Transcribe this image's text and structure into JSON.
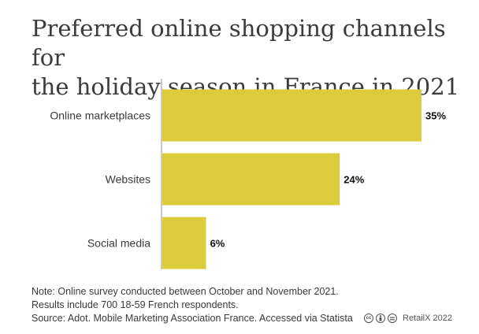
{
  "title_lines": [
    "Preferred online shopping channels for",
    "the holiday season in France in 2021"
  ],
  "chart_data": {
    "type": "bar",
    "orientation": "horizontal",
    "title": "Preferred online shopping channels for the holiday season in France in 2021",
    "categories": [
      "Online marketplaces",
      "Websites",
      "Social media"
    ],
    "values": [
      35,
      24,
      6
    ],
    "value_labels": [
      "35%",
      "24%",
      "6%"
    ],
    "unit": "%",
    "xlim": [
      0,
      35
    ],
    "bar_color": "#dccb3a",
    "axis_color": "#c8c8c8",
    "grid": false
  },
  "notes": [
    "Note: Online survey conducted between October and November 2021.",
    "Results include 700 18-59 French respondents.",
    "Source: Adot. Mobile Marketing Association France. Accessed via Statista"
  ],
  "brand": {
    "license_icons": [
      "cc-icon",
      "by-icon",
      "nd-icon"
    ],
    "cc_text": "cc",
    "name": "RetailX 2022"
  }
}
